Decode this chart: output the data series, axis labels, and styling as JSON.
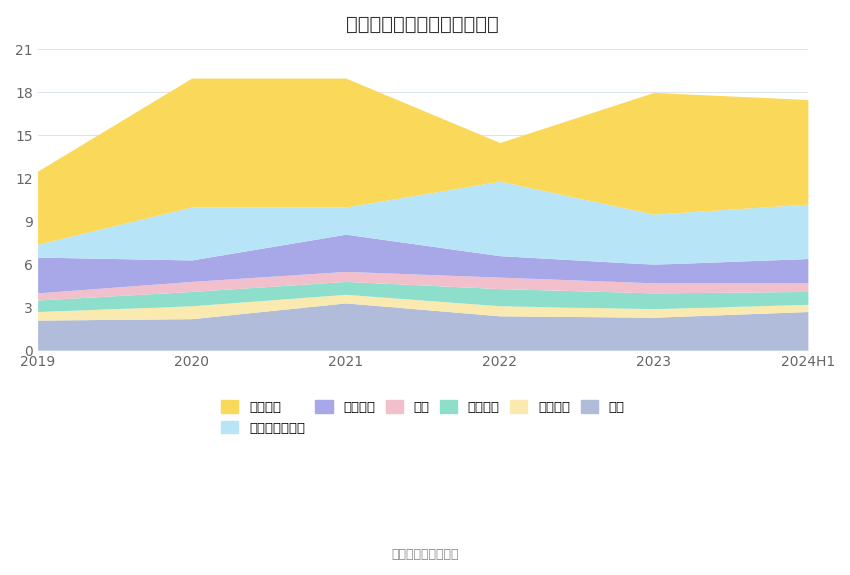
{
  "title": "历年主要资产堆积图（亿元）",
  "x_labels": [
    "2019",
    "2020",
    "2021",
    "2022",
    "2023",
    "2024H1"
  ],
  "series": [
    {
      "name": "其它",
      "color": "#b0bcda",
      "values": [
        2.1,
        2.2,
        3.3,
        2.4,
        2.3,
        2.7
      ]
    },
    {
      "name": "无形资产",
      "color": "#faeab0",
      "values": [
        0.6,
        0.9,
        0.6,
        0.7,
        0.6,
        0.5
      ]
    },
    {
      "name": "固定资产",
      "color": "#8ddecb",
      "values": [
        0.8,
        1.0,
        0.9,
        1.2,
        1.1,
        0.9
      ]
    },
    {
      "name": "存货",
      "color": "#f2bfcc",
      "values": [
        0.5,
        0.7,
        0.7,
        0.8,
        0.7,
        0.6
      ]
    },
    {
      "name": "应收账款",
      "color": "#a8a8e8",
      "values": [
        2.5,
        1.5,
        2.6,
        1.5,
        1.3,
        1.7
      ]
    },
    {
      "name": "交易性金融资产",
      "color": "#b8e4f8",
      "values": [
        0.9,
        3.7,
        1.9,
        5.2,
        3.5,
        3.8
      ]
    },
    {
      "name": "货币资金",
      "color": "#f9d85a",
      "values": [
        5.1,
        9.0,
        9.0,
        2.7,
        8.5,
        7.3
      ]
    }
  ],
  "ylim": [
    0,
    21
  ],
  "yticks": [
    0,
    3,
    6,
    9,
    12,
    15,
    18,
    21
  ],
  "source_text": "数据来源：恒生聚源",
  "background_color": "#ffffff",
  "grid_color": "#dde3ef",
  "title_fontsize": 14,
  "axis_fontsize": 10,
  "legend_fontsize": 9.5
}
